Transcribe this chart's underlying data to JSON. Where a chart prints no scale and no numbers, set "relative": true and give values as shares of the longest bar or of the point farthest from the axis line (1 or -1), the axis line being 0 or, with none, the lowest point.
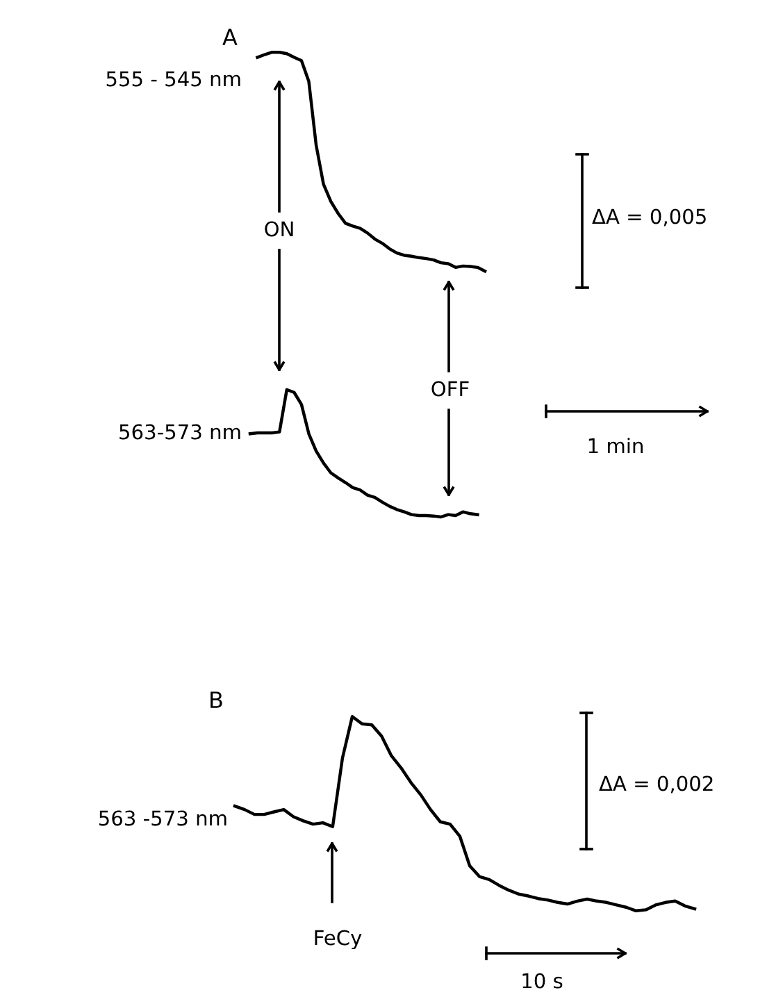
{
  "chart_data": [
    {
      "type": "line",
      "title": "A",
      "relative": true,
      "categories": [
        null,
        null,
        null,
        null,
        null,
        null,
        null,
        null,
        null,
        null,
        null,
        null,
        null,
        null,
        null,
        null,
        null,
        null,
        null,
        null,
        null,
        null,
        null,
        null,
        null,
        null,
        null,
        null,
        null,
        null,
        null,
        null,
        null
      ],
      "series": [
        {
          "name": "555 - 545 nm",
          "color": "#000000",
          "values": [
            null,
            0.989,
            0.995,
            1.0,
            1.0,
            0.997,
            0.989,
            0.982,
            0.937,
            0.8,
            0.716,
            0.679,
            0.653,
            0.632,
            0.626,
            0.621,
            0.611,
            0.598,
            0.589,
            0.577,
            0.568,
            0.563,
            0.561,
            0.558,
            0.556,
            0.553,
            0.547,
            0.545,
            0.537,
            0.54,
            0.539,
            0.537,
            0.529
          ]
        },
        {
          "name": "563-573 nm",
          "color": "#000000",
          "values": [
            0.179,
            0.181,
            0.181,
            0.181,
            0.183,
            0.274,
            0.268,
            0.242,
            0.179,
            0.142,
            0.116,
            0.095,
            0.084,
            0.074,
            0.063,
            0.058,
            0.047,
            0.042,
            0.032,
            0.023,
            0.016,
            0.011,
            0.005,
            0.003,
            0.003,
            0.002,
            0.0,
            0.005,
            0.003,
            0.011,
            0.007,
            0.005,
            null
          ]
        }
      ],
      "annotations": [
        "ON",
        "OFF",
        "ΔA = 0,005",
        "1 min"
      ]
    },
    {
      "type": "line",
      "title": "B",
      "relative": true,
      "categories": [
        null,
        null,
        null,
        null,
        null,
        null,
        null,
        null,
        null,
        null,
        null,
        null,
        null,
        null,
        null,
        null,
        null,
        null,
        null,
        null,
        null,
        null,
        null,
        null,
        null,
        null,
        null,
        null,
        null,
        null,
        null,
        null,
        null,
        null,
        null,
        null,
        null,
        null,
        null,
        null,
        null,
        null,
        null,
        null,
        null,
        null,
        null,
        null
      ],
      "series": [
        {
          "name": "563 -573 nm",
          "color": "#000000",
          "values": [
            0.539,
            0.521,
            0.496,
            0.496,
            0.509,
            0.521,
            0.484,
            0.463,
            0.446,
            0.453,
            0.433,
            0.786,
            1.0,
            0.962,
            0.957,
            0.899,
            0.798,
            0.735,
            0.66,
            0.597,
            0.521,
            0.458,
            0.446,
            0.383,
            0.232,
            0.176,
            0.161,
            0.131,
            0.106,
            0.086,
            0.076,
            0.063,
            0.055,
            0.043,
            0.035,
            0.05,
            0.06,
            0.05,
            0.043,
            0.03,
            0.018,
            0.0,
            0.005,
            0.03,
            0.043,
            0.05,
            0.025,
            0.01
          ]
        }
      ],
      "annotations": [
        "FeCy",
        "ΔA = 0,002",
        "10 s"
      ]
    }
  ]
}
